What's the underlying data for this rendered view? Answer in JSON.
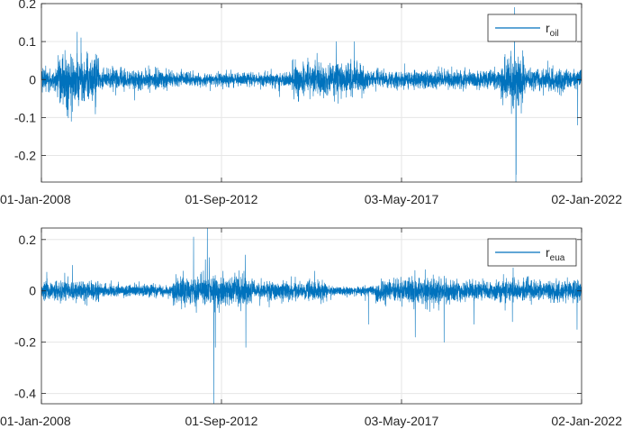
{
  "chart_data": [
    {
      "type": "line",
      "legend": {
        "label": "r",
        "label_sub": "oil",
        "placement": "top-right"
      },
      "series": [
        {
          "name": "r_oil",
          "color": "#0072BD"
        }
      ],
      "x_ticks": [
        "01-Jan-2008",
        "01-Sep-2012",
        "03-May-2017",
        "02-Jan-2022"
      ],
      "y_ticks": [
        "0.2",
        "0.1",
        "0",
        "-0.1",
        "-0.2"
      ],
      "y_tick_values": [
        0.2,
        0.1,
        0,
        -0.1,
        -0.2
      ],
      "xlim": [
        "2008-01-01",
        "2022-01-02"
      ],
      "ylim": [
        -0.27,
        0.2
      ],
      "grid": true,
      "segments": [
        {
          "from": "2008-01-01",
          "to": "2008-06-01",
          "amp": 0.025
        },
        {
          "from": "2008-06-01",
          "to": "2009-07-01",
          "amp": 0.055
        },
        {
          "from": "2009-07-01",
          "to": "2011-06-01",
          "amp": 0.022
        },
        {
          "from": "2011-06-01",
          "to": "2014-07-01",
          "amp": 0.015
        },
        {
          "from": "2014-07-01",
          "to": "2016-06-01",
          "amp": 0.035
        },
        {
          "from": "2016-06-01",
          "to": "2019-12-01",
          "amp": 0.02
        },
        {
          "from": "2019-12-01",
          "to": "2020-07-01",
          "amp": 0.06
        },
        {
          "from": "2020-07-01",
          "to": "2022-01-02",
          "amp": 0.025
        }
      ],
      "spikes": [
        {
          "date": "2008-10-10",
          "value": -0.11
        },
        {
          "date": "2008-12-05",
          "value": 0.125
        },
        {
          "date": "2009-01-10",
          "value": 0.11
        },
        {
          "date": "2015-08-25",
          "value": 0.1
        },
        {
          "date": "2016-02-12",
          "value": 0.1
        },
        {
          "date": "2020-03-09",
          "value": -0.09
        },
        {
          "date": "2020-04-06",
          "value": 0.19
        },
        {
          "date": "2020-04-20",
          "value": -0.27
        },
        {
          "date": "2020-04-22",
          "value": -0.25
        },
        {
          "date": "2021-11-26",
          "value": -0.12
        }
      ]
    },
    {
      "type": "line",
      "legend": {
        "label": "r",
        "label_sub": "eua",
        "placement": "top-right"
      },
      "series": [
        {
          "name": "r_eua",
          "color": "#0072BD"
        }
      ],
      "x_ticks": [
        "01-Jan-2008",
        "01-Sep-2012",
        "03-May-2017",
        "02-Jan-2022"
      ],
      "y_ticks": [
        "0.2",
        "0",
        "-0.2",
        "-0.4"
      ],
      "y_tick_values": [
        0.2,
        0,
        -0.2,
        -0.4
      ],
      "xlim": [
        "2008-01-01",
        "2022-01-02"
      ],
      "ylim": [
        -0.44,
        0.245
      ],
      "grid": true,
      "segments": [
        {
          "from": "2008-01-01",
          "to": "2009-07-01",
          "amp": 0.035
        },
        {
          "from": "2009-07-01",
          "to": "2011-06-01",
          "amp": 0.02
        },
        {
          "from": "2011-06-01",
          "to": "2013-07-01",
          "amp": 0.05
        },
        {
          "from": "2013-07-01",
          "to": "2015-06-01",
          "amp": 0.03
        },
        {
          "from": "2015-06-01",
          "to": "2016-09-01",
          "amp": 0.015
        },
        {
          "from": "2016-09-01",
          "to": "2018-06-01",
          "amp": 0.04
        },
        {
          "from": "2018-06-01",
          "to": "2022-01-02",
          "amp": 0.035
        }
      ],
      "spikes": [
        {
          "date": "2008-10-20",
          "value": 0.1
        },
        {
          "date": "2011-12-12",
          "value": 0.21
        },
        {
          "date": "2012-04-20",
          "value": 0.245
        },
        {
          "date": "2012-05-10",
          "value": 0.13
        },
        {
          "date": "2012-06-20",
          "value": -0.44
        },
        {
          "date": "2012-07-05",
          "value": -0.22
        },
        {
          "date": "2013-04-16",
          "value": 0.14
        },
        {
          "date": "2013-04-20",
          "value": -0.22
        },
        {
          "date": "2016-06-24",
          "value": -0.13
        },
        {
          "date": "2017-09-10",
          "value": -0.18
        },
        {
          "date": "2018-06-10",
          "value": -0.2
        },
        {
          "date": "2019-03-20",
          "value": -0.13
        },
        {
          "date": "2020-03-18",
          "value": -0.12
        },
        {
          "date": "2020-03-25",
          "value": 0.09
        },
        {
          "date": "2021-11-20",
          "value": -0.15
        }
      ]
    }
  ]
}
